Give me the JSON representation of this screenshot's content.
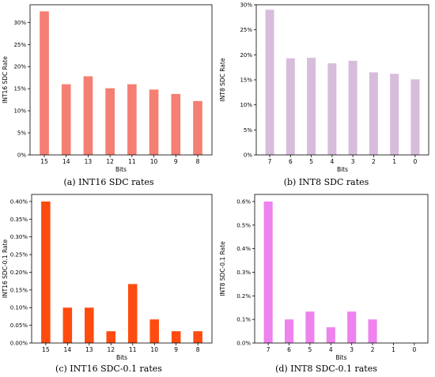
{
  "chart_data": [
    {
      "type": "bar",
      "caption": "(a)  INT16 SDC rates",
      "categories": [
        "15",
        "14",
        "13",
        "12",
        "11",
        "10",
        "9",
        "8"
      ],
      "values": [
        32.5,
        16.0,
        17.8,
        15.1,
        16.0,
        14.8,
        13.8,
        12.2
      ],
      "ylabel": "INT16 SDC Rate",
      "xlabel": "Bits",
      "ylim": [
        0,
        34
      ],
      "yticks": [
        0,
        5,
        10,
        15,
        20,
        25,
        30
      ],
      "ytick_labels": [
        "0%",
        "5%",
        "10%",
        "15%",
        "20%",
        "25%",
        "30%"
      ],
      "color": "#f47f72",
      "grid": false
    },
    {
      "type": "bar",
      "caption": "(b)  INT8 SDC rates",
      "categories": [
        "7",
        "6",
        "5",
        "4",
        "3",
        "2",
        "1",
        "0"
      ],
      "values": [
        29.0,
        19.3,
        19.4,
        18.3,
        18.8,
        16.5,
        16.2,
        15.1
      ],
      "ylabel": "INT8 SDC Rate",
      "xlabel": "Bits",
      "ylim": [
        0,
        30
      ],
      "yticks": [
        0,
        5,
        10,
        15,
        20,
        25,
        30
      ],
      "ytick_labels": [
        "0%",
        "5%",
        "10%",
        "15%",
        "20%",
        "25%",
        "30%"
      ],
      "color": "#d7bddb",
      "grid": false
    },
    {
      "type": "bar",
      "caption": "(c)  INT16 SDC-0.1 rates",
      "categories": [
        "15",
        "14",
        "13",
        "12",
        "11",
        "10",
        "9",
        "8"
      ],
      "values": [
        0.4,
        0.1,
        0.1,
        0.0333,
        0.1667,
        0.0667,
        0.0333,
        0.0333
      ],
      "ylabel": "INT16 SDC-0.1 Rate",
      "xlabel": "Bits",
      "ylim": [
        0,
        0.42
      ],
      "yticks": [
        0,
        0.05,
        0.1,
        0.15,
        0.2,
        0.25,
        0.3,
        0.35,
        0.4
      ],
      "ytick_labels": [
        "0.00%",
        "0.05%",
        "0.10%",
        "0.15%",
        "0.20%",
        "0.25%",
        "0.30%",
        "0.35%",
        "0.40%"
      ],
      "color": "#ff4b0f",
      "grid": false
    },
    {
      "type": "bar",
      "caption": "(d)  INT8 SDC-0.1 rates",
      "categories": [
        "7",
        "6",
        "5",
        "4",
        "3",
        "2",
        "1",
        "0"
      ],
      "values": [
        0.6,
        0.1,
        0.1333,
        0.0667,
        0.1333,
        0.1,
        0.0,
        0.0
      ],
      "ylabel": "INT8 SDC-0.1 Rate",
      "xlabel": "Bits",
      "ylim": [
        0,
        0.63
      ],
      "yticks": [
        0,
        0.1,
        0.2,
        0.3,
        0.4,
        0.5,
        0.6
      ],
      "ytick_labels": [
        "0.0%",
        "0.1%",
        "0.2%",
        "0.3%",
        "0.4%",
        "0.5%",
        "0.6%"
      ],
      "color": "#ee82ee",
      "grid": false
    }
  ]
}
